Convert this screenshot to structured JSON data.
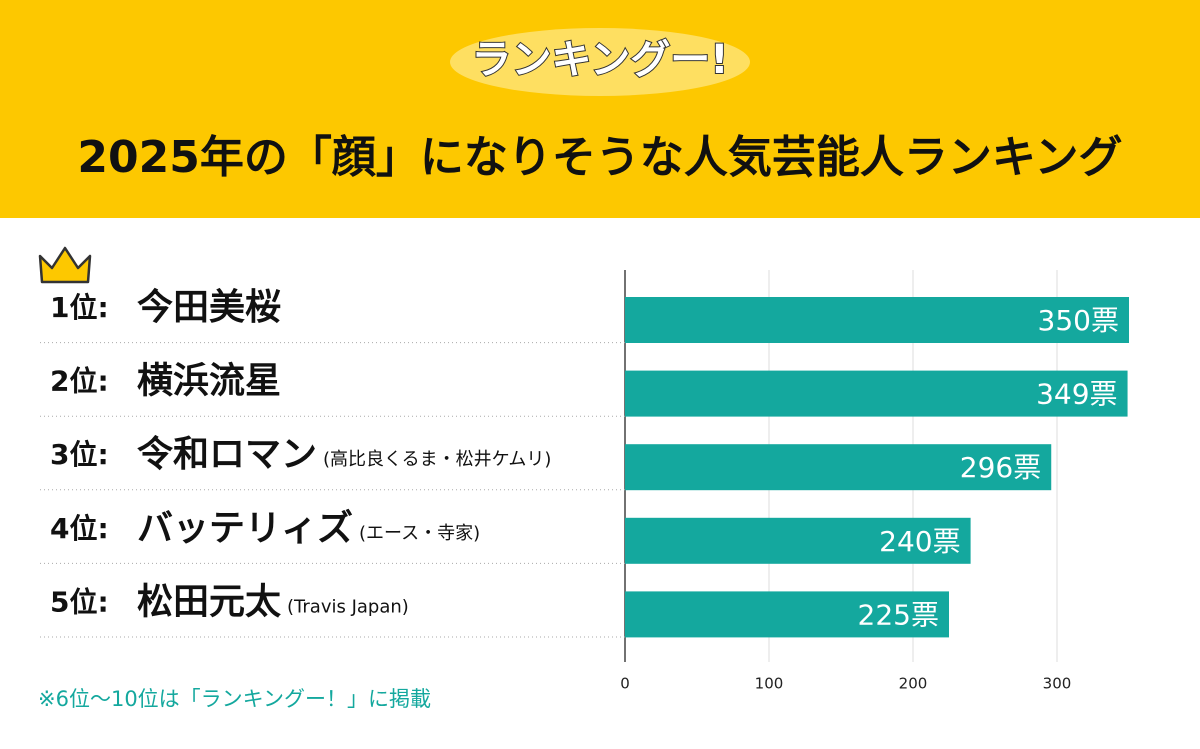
{
  "chart_data": {
    "type": "bar",
    "orientation": "horizontal",
    "logo": "ランキングー!",
    "title": "2025年の「顔」になりそうな人気芸能人ランキング",
    "ranks": [
      "1位:",
      "2位:",
      "3位:",
      "4位:",
      "5位:"
    ],
    "categories": [
      "今田美桜",
      "横浜流星",
      "令和ロマン",
      "バッテリィズ",
      "松田元太"
    ],
    "notes": [
      null,
      null,
      "(高比良くるま・松井ケムリ)",
      "(エース・寺家)",
      "(Travis Japan)"
    ],
    "values": [
      350,
      349,
      296,
      240,
      225
    ],
    "value_labels": [
      "350票",
      "349票",
      "296票",
      "240票",
      "225票"
    ],
    "color": "#14a89e",
    "xlim": [
      0,
      350
    ],
    "xticks": [
      0,
      100,
      200,
      300
    ],
    "grid": true,
    "footnote": "※6位～10位は「ランキングー！」に掲載"
  }
}
